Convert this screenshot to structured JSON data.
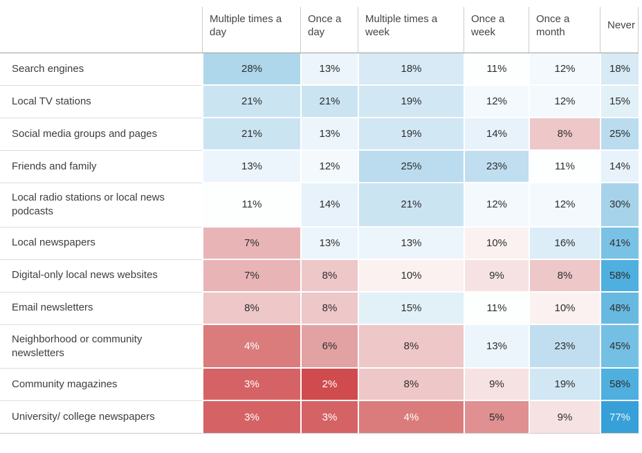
{
  "chart_data": {
    "type": "heatmap",
    "title": "",
    "unit": "%",
    "columns": [
      "Multiple times a day",
      "Once a day",
      "Multiple times a week",
      "Once a week",
      "Once a month",
      "Never"
    ],
    "rows": [
      "Search engines",
      "Local TV stations",
      "Social media groups and pages",
      "Friends and family",
      "Local radio stations or local news podcasts",
      "Local newspapers",
      "Digital-only local news websites",
      "Email newsletters",
      "Neighborhood or community newsletters",
      "Community magazines",
      "University/ college newspapers"
    ],
    "values": [
      [
        28,
        13,
        18,
        11,
        12,
        18
      ],
      [
        21,
        21,
        19,
        12,
        12,
        15
      ],
      [
        21,
        13,
        19,
        14,
        8,
        25
      ],
      [
        13,
        12,
        25,
        23,
        11,
        14
      ],
      [
        11,
        14,
        21,
        12,
        12,
        30
      ],
      [
        7,
        13,
        13,
        10,
        16,
        41
      ],
      [
        7,
        8,
        10,
        9,
        8,
        58
      ],
      [
        8,
        8,
        15,
        11,
        10,
        48
      ],
      [
        4,
        6,
        8,
        13,
        23,
        45
      ],
      [
        3,
        2,
        8,
        9,
        19,
        58
      ],
      [
        3,
        3,
        4,
        5,
        9,
        77
      ]
    ],
    "legend_position": "none",
    "grid": "off",
    "color_scale": {
      "2": {
        "bg": "#cf4b4e",
        "fg": "#ffffff"
      },
      "3": {
        "bg": "#d56366",
        "fg": "#ffffff"
      },
      "4": {
        "bg": "#da7c7c",
        "fg": "#ffffff"
      },
      "5": {
        "bg": "#e09091",
        "fg": "#2d2d2d"
      },
      "6": {
        "bg": "#e2a2a3",
        "fg": "#2d2d2d"
      },
      "7": {
        "bg": "#e9b4b6",
        "fg": "#2d2d2d"
      },
      "8": {
        "bg": "#eec7c8",
        "fg": "#2d2d2d"
      },
      "9": {
        "bg": "#f7e2e3",
        "fg": "#2d2d2d"
      },
      "10": {
        "bg": "#fbf1f1",
        "fg": "#2d2d2d"
      },
      "11": {
        "bg": "#fdfefe",
        "fg": "#2d2d2d"
      },
      "12": {
        "bg": "#f3f9fd",
        "fg": "#2d2d2d"
      },
      "13": {
        "bg": "#ecf5fb",
        "fg": "#2d2d2d"
      },
      "14": {
        "bg": "#e7f2fa",
        "fg": "#2d2d2d"
      },
      "15": {
        "bg": "#e2f0f8",
        "fg": "#2d2d2d"
      },
      "16": {
        "bg": "#dcedf7",
        "fg": "#2d2d2d"
      },
      "18": {
        "bg": "#d7eaf5",
        "fg": "#2d2d2d"
      },
      "19": {
        "bg": "#d2e7f4",
        "fg": "#2d2d2d"
      },
      "21": {
        "bg": "#cbe4f2",
        "fg": "#2d2d2d"
      },
      "23": {
        "bg": "#c1def0",
        "fg": "#2d2d2d"
      },
      "25": {
        "bg": "#badcee",
        "fg": "#2d2d2d"
      },
      "28": {
        "bg": "#aed7ec",
        "fg": "#2d2d2d"
      },
      "30": {
        "bg": "#a6d3ea",
        "fg": "#2d2d2d"
      },
      "41": {
        "bg": "#7ac2e5",
        "fg": "#2d2d2d"
      },
      "45": {
        "bg": "#74c0e4",
        "fg": "#2d2d2d"
      },
      "48": {
        "bg": "#68b9e1",
        "fg": "#2d2d2d"
      },
      "58": {
        "bg": "#4fafdf",
        "fg": "#2d2d2d"
      },
      "77": {
        "bg": "#37a0d8",
        "fg": "#eef7fc"
      }
    }
  }
}
